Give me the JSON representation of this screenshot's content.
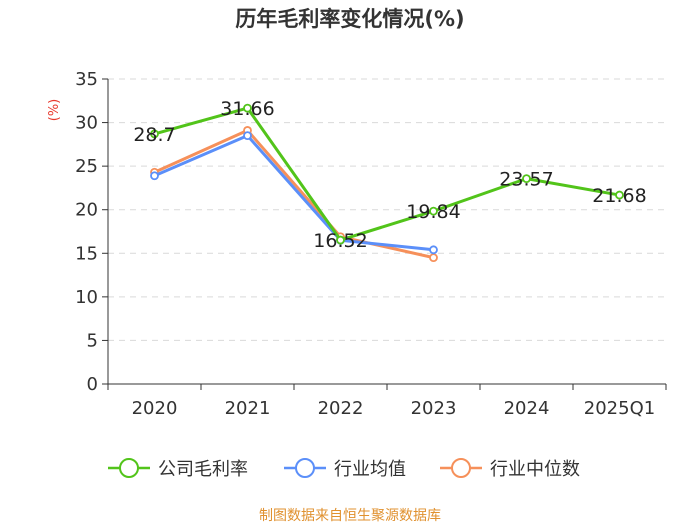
{
  "chart_data": {
    "type": "line",
    "title": "历年毛利率变化情况(%)",
    "ylabel": "(%)",
    "xlabel": "",
    "categories": [
      "2020",
      "2021",
      "2022",
      "2023",
      "2024",
      "2025Q1"
    ],
    "ylim": [
      0,
      35
    ],
    "yticks": [
      0,
      5,
      10,
      15,
      20,
      25,
      30,
      35
    ],
    "grid": true,
    "legend_position": "bottom",
    "series": [
      {
        "name": "公司毛利率",
        "color": "#52c41a",
        "values": [
          28.7,
          31.66,
          16.52,
          19.84,
          23.57,
          21.68
        ],
        "labels": [
          "28.7",
          "31.66",
          "16.52",
          "19.84",
          "23.57",
          "21.68"
        ]
      },
      {
        "name": "行业均值",
        "color": "#5b8ff9",
        "values": [
          23.9,
          28.5,
          16.5,
          15.4,
          null,
          null
        ]
      },
      {
        "name": "行业中位数",
        "color": "#f6905a",
        "values": [
          24.3,
          29.1,
          16.9,
          14.5,
          null,
          null
        ]
      }
    ]
  },
  "source": "制图数据来自恒生聚源数据库",
  "colors": {
    "axis": "#333333",
    "grid": "#d9d9d9",
    "unit": "#e8382c",
    "source": "#e0912f"
  }
}
